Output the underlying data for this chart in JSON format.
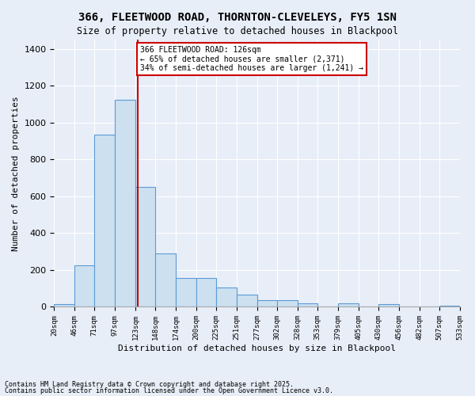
{
  "title": "366, FLEETWOOD ROAD, THORNTON-CLEVELEYS, FY5 1SN",
  "subtitle": "Size of property relative to detached houses in Blackpool",
  "xlabel": "Distribution of detached houses by size in Blackpool",
  "ylabel": "Number of detached properties",
  "footnote1": "Contains HM Land Registry data © Crown copyright and database right 2025.",
  "footnote2": "Contains public sector information licensed under the Open Government Licence v3.0.",
  "annotation_line1": "366 FLEETWOOD ROAD: 126sqm",
  "annotation_line2": "← 65% of detached houses are smaller (2,371)",
  "annotation_line3": "34% of semi-detached houses are larger (1,241) →",
  "property_size": 126,
  "bar_color": "#cce0f0",
  "bar_edge_color": "#5b9bd5",
  "vline_color": "#cc0000",
  "annotation_box_color": "#cc0000",
  "background_color": "#e8eef8",
  "grid_color": "#ffffff",
  "bin_edges": [
    20,
    46,
    71,
    97,
    123,
    148,
    174,
    200,
    225,
    251,
    277,
    302,
    328,
    353,
    379,
    405,
    430,
    456,
    482,
    507,
    533
  ],
  "bin_labels": [
    "20sqm",
    "46sqm",
    "71sqm",
    "97sqm",
    "123sqm",
    "148sqm",
    "174sqm",
    "200sqm",
    "225sqm",
    "251sqm",
    "277sqm",
    "302sqm",
    "328sqm",
    "353sqm",
    "379sqm",
    "405sqm",
    "430sqm",
    "456sqm",
    "482sqm",
    "507sqm",
    "533sqm"
  ],
  "counts": [
    15,
    225,
    935,
    1125,
    650,
    290,
    155,
    155,
    105,
    65,
    35,
    35,
    20,
    0,
    18,
    0,
    13,
    0,
    0,
    8
  ],
  "ylim": [
    0,
    1450
  ],
  "yticks": [
    0,
    200,
    400,
    600,
    800,
    1000,
    1200,
    1400
  ]
}
